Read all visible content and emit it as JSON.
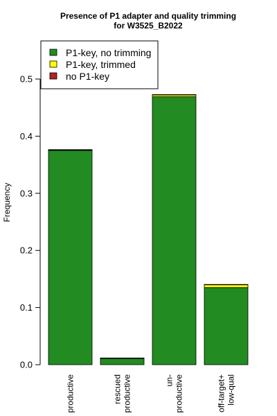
{
  "chart_data": {
    "type": "bar",
    "stacked": true,
    "title": [
      "Presence of P1 adapter and quality trimming",
      "for W3525_B2022"
    ],
    "xlabel": "",
    "ylabel": "Frequency",
    "ylim": [
      0,
      0.5
    ],
    "yticks": [
      "0.0",
      "0.1",
      "0.2",
      "0.3",
      "0.4",
      "0.5"
    ],
    "categories": [
      [
        "productive"
      ],
      [
        "rescued",
        "productive"
      ],
      [
        "un-",
        "productive"
      ],
      [
        "off-target+",
        "low-qual"
      ]
    ],
    "series": [
      {
        "name": "P1-key, no trimming",
        "color": "#228b22",
        "values": [
          0.375,
          0.011,
          0.469,
          0.135
        ]
      },
      {
        "name": "P1-key, trimmed",
        "color": "#ffff00",
        "values": [
          0.001,
          0.0005,
          0.003,
          0.005
        ]
      },
      {
        "name": "no P1-key",
        "color": "#b22222",
        "values": [
          0.0005,
          0.0003,
          0.0008,
          0.0005
        ]
      }
    ],
    "legend_position": "top-left",
    "grid": false
  }
}
